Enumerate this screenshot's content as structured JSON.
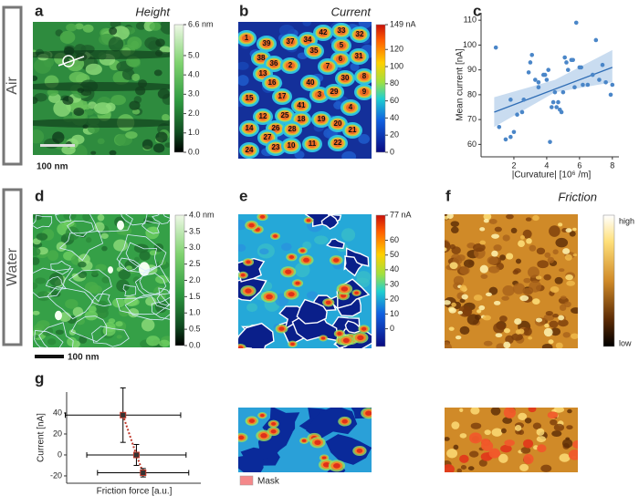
{
  "row_labels": [
    "Air",
    "Water"
  ],
  "panels": {
    "a": {
      "label": "a",
      "title": "Height",
      "scale_bar": "100 nm",
      "colorbar": {
        "lim": [
          0,
          6.6
        ],
        "ticks": [
          {
            "value": 0,
            "label": "0.0"
          },
          {
            "value": 1,
            "label": "1.0"
          },
          {
            "value": 2,
            "label": "2.0"
          },
          {
            "value": 3,
            "label": "3.0"
          },
          {
            "value": 4,
            "label": "4.0"
          },
          {
            "value": 5,
            "label": "5.0"
          },
          {
            "value": 6.6,
            "label": "6.6 nm"
          }
        ]
      }
    },
    "b": {
      "label": "b",
      "title": "Current",
      "grain_labels": [
        "1",
        "39",
        "37",
        "34",
        "42",
        "33",
        "32",
        "38",
        "35",
        "5",
        "6",
        "31",
        "36",
        "2",
        "13",
        "7",
        "8",
        "16",
        "40",
        "30",
        "3",
        "29",
        "9",
        "15",
        "17",
        "41",
        "4",
        "12",
        "25",
        "26",
        "18",
        "19",
        "20",
        "21",
        "28",
        "14",
        "27",
        "23",
        "10",
        "11",
        "22",
        "24"
      ],
      "colorbar": {
        "lim": [
          0,
          149
        ],
        "ticks": [
          0,
          20,
          40,
          60,
          80,
          100,
          120,
          {
            "value": 149,
            "label": "149 nA"
          }
        ]
      }
    },
    "c": {
      "label": "c"
    },
    "d": {
      "label": "d",
      "scale_bar": "100 nm",
      "colorbar": {
        "lim": [
          0,
          4
        ],
        "ticks": [
          {
            "value": 0,
            "label": "0.0"
          },
          0.5,
          {
            "value": 1,
            "label": "1.0"
          },
          1.5,
          {
            "value": 2,
            "label": "2.0"
          },
          2.5,
          {
            "value": 3,
            "label": "3.0"
          },
          3.5,
          {
            "value": 4,
            "label": "4.0 nm"
          }
        ]
      }
    },
    "e": {
      "label": "e",
      "mask_legend": "Mask",
      "colorbar": {
        "lim": [
          -12,
          77
        ],
        "ticks": [
          0,
          10,
          20,
          30,
          40,
          50,
          60,
          {
            "value": 77,
            "label": "77 nA"
          }
        ]
      }
    },
    "f": {
      "label": "f",
      "title": "Friction",
      "colorbar": {
        "high": "high",
        "low": "low"
      }
    },
    "g": {
      "label": "g"
    }
  },
  "chart_data": [
    {
      "type": "scatter",
      "x_label": "|Curvature|  [10⁶ /m]",
      "y_label": "Mean current  [nA]",
      "color": "#4a86c8",
      "x": [
        0.9,
        1.1,
        1.5,
        1.8,
        2.0,
        1.8,
        2.5,
        2.6,
        2.9,
        3.0,
        3.1,
        3.3,
        3.5,
        3.5,
        3.8,
        3.9,
        4.0,
        4.1,
        4.2,
        4.3,
        4.5,
        4.6,
        4.7,
        4.8,
        4.9,
        5.0,
        5.1,
        5.2,
        5.3,
        5.5,
        5.6,
        5.7,
        5.8,
        6.0,
        6.1,
        6.2,
        6.5,
        6.8,
        7.0,
        7.2,
        7.4,
        7.6,
        7.9,
        8.0,
        2.2,
        4.4
      ],
      "y": [
        99,
        67,
        62,
        63,
        65,
        78,
        73,
        78,
        89,
        93,
        96,
        86,
        85,
        83,
        88,
        88,
        86,
        90,
        61,
        75,
        81,
        75,
        77,
        74,
        73,
        81,
        95,
        93,
        90,
        94,
        94,
        83,
        109,
        91,
        91,
        84,
        84,
        88,
        102,
        86,
        92,
        85,
        80,
        84,
        72,
        77
      ],
      "xlim": [
        0,
        8.4
      ],
      "ylim": [
        55,
        113
      ],
      "xticks": [
        2,
        4,
        6,
        8
      ],
      "yticks": [
        60,
        70,
        80,
        90,
        100,
        110
      ],
      "fit": {
        "x": [
          0.8,
          8
        ],
        "y": [
          73,
          91
        ],
        "color": "#2f6db5"
      },
      "band": {
        "x": [
          0.8,
          4.5,
          8
        ],
        "lower": [
          67,
          81,
          85
        ],
        "upper": [
          79,
          86,
          98
        ],
        "color": "#c9dcf0"
      }
    },
    {
      "type": "errorbar",
      "x_label": "Friction force  [a.u.]",
      "y_label": "Current  [nA]",
      "color": "#000000",
      "line_color": "#c0392b",
      "x": [
        4.2,
        5.2,
        5.7
      ],
      "y": [
        38,
        0,
        -17
      ],
      "xerr": [
        4.3,
        3.7,
        3.4
      ],
      "yerr": [
        26,
        10,
        4
      ],
      "xlim": [
        0,
        10
      ],
      "ylim": [
        -27,
        60
      ],
      "yticks": [
        -20,
        0,
        20,
        40
      ]
    }
  ]
}
